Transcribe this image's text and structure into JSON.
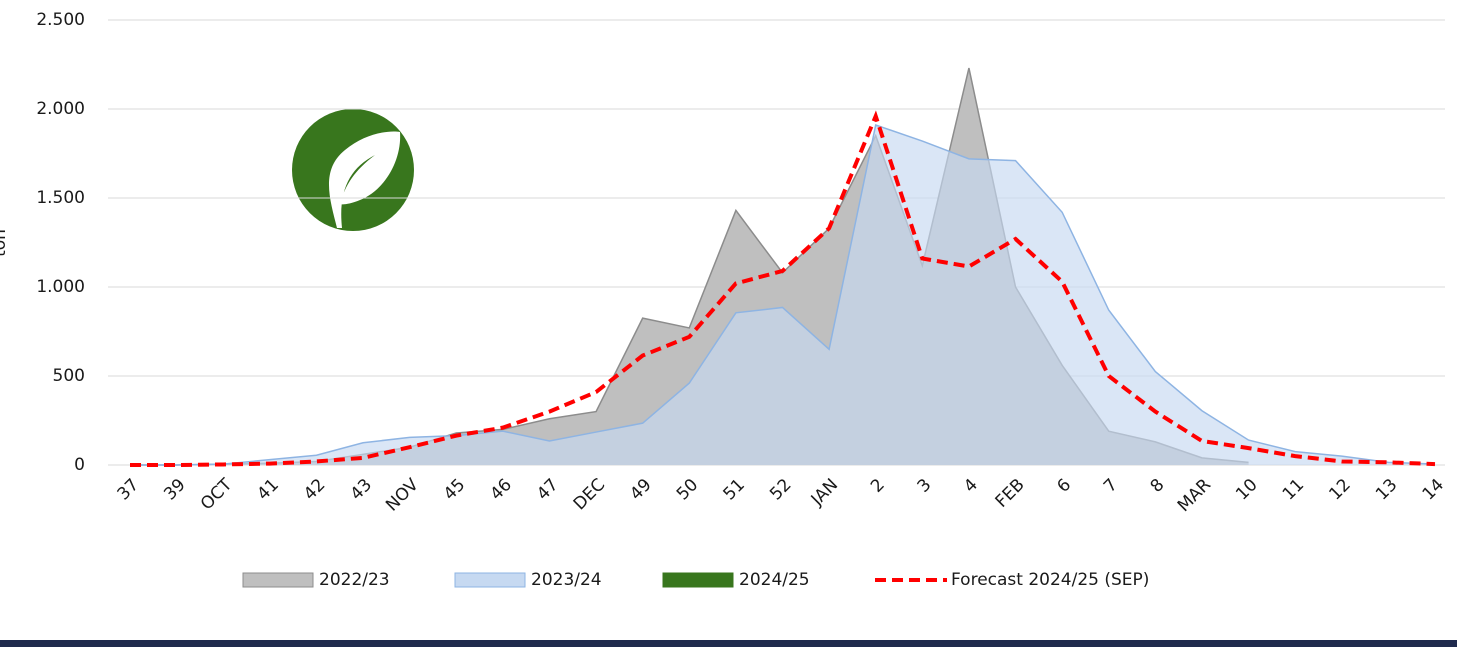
{
  "chart_data": {
    "type": "area",
    "y_label": "ton",
    "categories": [
      "37",
      "39",
      "OCT",
      "41",
      "42",
      "43",
      "NOV",
      "45",
      "46",
      "47",
      "DEC",
      "49",
      "50",
      "51",
      "52",
      "JAN",
      "2",
      "3",
      "4",
      "FEB",
      "6",
      "7",
      "8",
      "MAR",
      "10",
      "11",
      "12",
      "13",
      "14"
    ],
    "series": [
      {
        "name": "2022/23",
        "color": "#bfbfbf",
        "stroke": "#8c8c8c",
        "kind": "area",
        "values": [
          0,
          0,
          5,
          10,
          20,
          60,
          100,
          180,
          200,
          260,
          300,
          825,
          770,
          1430,
          1080,
          1330,
          1850,
          1120,
          2230,
          1000,
          560,
          190,
          130,
          40,
          15,
          null,
          null,
          null,
          null
        ]
      },
      {
        "name": "2023/24",
        "color": "#c6d9f1",
        "stroke": "#8eb4e3",
        "kind": "area",
        "values": [
          0,
          0,
          5,
          30,
          55,
          125,
          155,
          165,
          190,
          135,
          185,
          235,
          460,
          855,
          885,
          650,
          1910,
          1820,
          1720,
          1710,
          1420,
          870,
          525,
          305,
          140,
          75,
          50,
          15,
          5
        ]
      },
      {
        "name": "2024/25",
        "color": "#38761d",
        "stroke": "#38761d",
        "kind": "area",
        "values": [
          null,
          null,
          null,
          null,
          null,
          null,
          null,
          null,
          null,
          null,
          null,
          null,
          null,
          null,
          null,
          null,
          null,
          null,
          null,
          null,
          null,
          null,
          null,
          null,
          null,
          null,
          null,
          null,
          null
        ]
      },
      {
        "name": "Forecast 2024/25 (SEP)",
        "color": "#ff0000",
        "kind": "dashed-line",
        "values": [
          0,
          0,
          3,
          8,
          20,
          40,
          100,
          165,
          210,
          300,
          410,
          615,
          720,
          1020,
          1090,
          1330,
          1960,
          1160,
          1115,
          1270,
          1030,
          500,
          300,
          135,
          95,
          50,
          20,
          15,
          5
        ]
      }
    ],
    "ylim": [
      0,
      2500
    ],
    "yticks": [
      0,
      500,
      {
        "value": 1000,
        "label": "1.000"
      },
      {
        "value": 1500,
        "label": "1.500"
      },
      {
        "value": 2000,
        "label": "2.000"
      },
      {
        "value": 2500,
        "label": "2.500"
      }
    ],
    "grid": true,
    "legend": "bottom"
  }
}
